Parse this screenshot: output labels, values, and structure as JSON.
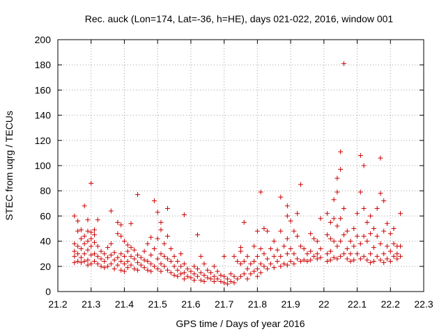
{
  "chart_data": {
    "type": "scatter",
    "title": "Rec. auck (Lon=174, Lat=-36, h=HE), days 021-022, 2016, window 001",
    "xlabel": "GPS time / Days of year 2016",
    "ylabel": "STEC from uqrg / TECUs",
    "xlim": [
      21.2,
      22.3
    ],
    "ylim": [
      0,
      200
    ],
    "xticks": [
      21.2,
      21.3,
      21.4,
      21.5,
      21.6,
      21.7,
      21.8,
      21.9,
      22.0,
      22.1,
      22.2,
      22.3
    ],
    "xtick_labels": [
      "21.2",
      "21.3",
      "21.4",
      "21.5",
      "21.6",
      "21.7",
      "21.8",
      "21.9",
      "22",
      "22.1",
      "22.2",
      "22.3"
    ],
    "yticks": [
      0,
      20,
      40,
      60,
      80,
      100,
      120,
      140,
      160,
      180,
      200
    ],
    "ytick_labels": [
      "0",
      "20",
      "40",
      "60",
      "80",
      "100",
      "120",
      "140",
      "160",
      "180",
      "200"
    ],
    "grid": true,
    "marker": "+",
    "color": "#cc0000",
    "points": [
      [
        21.25,
        60
      ],
      [
        21.25,
        38
      ],
      [
        21.25,
        32
      ],
      [
        21.25,
        28
      ],
      [
        21.25,
        23
      ],
      [
        21.26,
        56
      ],
      [
        21.26,
        48
      ],
      [
        21.26,
        36
      ],
      [
        21.26,
        30
      ],
      [
        21.26,
        24
      ],
      [
        21.27,
        49
      ],
      [
        21.27,
        42
      ],
      [
        21.27,
        34
      ],
      [
        21.27,
        27
      ],
      [
        21.27,
        23
      ],
      [
        21.28,
        68
      ],
      [
        21.28,
        44
      ],
      [
        21.28,
        38
      ],
      [
        21.28,
        30
      ],
      [
        21.28,
        24
      ],
      [
        21.29,
        57
      ],
      [
        21.29,
        48
      ],
      [
        21.29,
        40
      ],
      [
        21.29,
        33
      ],
      [
        21.29,
        25
      ],
      [
        21.29,
        21
      ],
      [
        21.3,
        86
      ],
      [
        21.3,
        47
      ],
      [
        21.3,
        42
      ],
      [
        21.3,
        36
      ],
      [
        21.3,
        29
      ],
      [
        21.3,
        22
      ],
      [
        21.31,
        49
      ],
      [
        21.31,
        45
      ],
      [
        21.31,
        39
      ],
      [
        21.31,
        30
      ],
      [
        21.31,
        24
      ],
      [
        21.32,
        57
      ],
      [
        21.32,
        36
      ],
      [
        21.32,
        28
      ],
      [
        21.32,
        22
      ],
      [
        21.33,
        32
      ],
      [
        21.33,
        26
      ],
      [
        21.33,
        20
      ],
      [
        21.34,
        30
      ],
      [
        21.34,
        24
      ],
      [
        21.34,
        19
      ],
      [
        21.35,
        35
      ],
      [
        21.35,
        27
      ],
      [
        21.35,
        20
      ],
      [
        21.36,
        64
      ],
      [
        21.36,
        38
      ],
      [
        21.36,
        29
      ],
      [
        21.36,
        22
      ],
      [
        21.37,
        31
      ],
      [
        21.37,
        25
      ],
      [
        21.37,
        18
      ],
      [
        21.38,
        55
      ],
      [
        21.38,
        46
      ],
      [
        21.38,
        27
      ],
      [
        21.38,
        21
      ],
      [
        21.39,
        53
      ],
      [
        21.39,
        44
      ],
      [
        21.39,
        30
      ],
      [
        21.39,
        24
      ],
      [
        21.39,
        17
      ],
      [
        21.4,
        40
      ],
      [
        21.4,
        28
      ],
      [
        21.4,
        22
      ],
      [
        21.4,
        16
      ],
      [
        21.41,
        37
      ],
      [
        21.41,
        32
      ],
      [
        21.41,
        24
      ],
      [
        21.41,
        19
      ],
      [
        21.42,
        54
      ],
      [
        21.42,
        35
      ],
      [
        21.42,
        28
      ],
      [
        21.42,
        21
      ],
      [
        21.43,
        33
      ],
      [
        21.43,
        26
      ],
      [
        21.43,
        18
      ],
      [
        21.44,
        77
      ],
      [
        21.44,
        29
      ],
      [
        21.44,
        23
      ],
      [
        21.44,
        17
      ],
      [
        21.45,
        27
      ],
      [
        21.45,
        21
      ],
      [
        21.46,
        32
      ],
      [
        21.46,
        25
      ],
      [
        21.46,
        19
      ],
      [
        21.47,
        38
      ],
      [
        21.47,
        24
      ],
      [
        21.47,
        17
      ],
      [
        21.48,
        43
      ],
      [
        21.48,
        29
      ],
      [
        21.48,
        22
      ],
      [
        21.48,
        16
      ],
      [
        21.49,
        72
      ],
      [
        21.49,
        34
      ],
      [
        21.49,
        20
      ],
      [
        21.5,
        63
      ],
      [
        21.5,
        42
      ],
      [
        21.5,
        26
      ],
      [
        21.5,
        18
      ],
      [
        21.51,
        55
      ],
      [
        21.51,
        49
      ],
      [
        21.51,
        30
      ],
      [
        21.51,
        22
      ],
      [
        21.51,
        16
      ],
      [
        21.52,
        38
      ],
      [
        21.52,
        28
      ],
      [
        21.52,
        20
      ],
      [
        21.53,
        66
      ],
      [
        21.53,
        44
      ],
      [
        21.53,
        26
      ],
      [
        21.53,
        17
      ],
      [
        21.54,
        34
      ],
      [
        21.54,
        24
      ],
      [
        21.54,
        15
      ],
      [
        21.55,
        28
      ],
      [
        21.55,
        20
      ],
      [
        21.55,
        13
      ],
      [
        21.56,
        24
      ],
      [
        21.56,
        17
      ],
      [
        21.56,
        12
      ],
      [
        21.57,
        30
      ],
      [
        21.57,
        20
      ],
      [
        21.57,
        14
      ],
      [
        21.58,
        61
      ],
      [
        21.58,
        22
      ],
      [
        21.58,
        15
      ],
      [
        21.58,
        10
      ],
      [
        21.59,
        18
      ],
      [
        21.59,
        12
      ],
      [
        21.6,
        16
      ],
      [
        21.6,
        11
      ],
      [
        21.61,
        20
      ],
      [
        21.61,
        14
      ],
      [
        21.61,
        9
      ],
      [
        21.62,
        45
      ],
      [
        21.62,
        18
      ],
      [
        21.62,
        12
      ],
      [
        21.63,
        28
      ],
      [
        21.63,
        15
      ],
      [
        21.63,
        9
      ],
      [
        21.64,
        22
      ],
      [
        21.64,
        13
      ],
      [
        21.64,
        8
      ],
      [
        21.65,
        17
      ],
      [
        21.65,
        11
      ],
      [
        21.66,
        15
      ],
      [
        21.66,
        10
      ],
      [
        21.67,
        20
      ],
      [
        21.67,
        12
      ],
      [
        21.67,
        8
      ],
      [
        21.68,
        16
      ],
      [
        21.68,
        10
      ],
      [
        21.69,
        13
      ],
      [
        21.69,
        8
      ],
      [
        21.7,
        28
      ],
      [
        21.7,
        12
      ],
      [
        21.7,
        7
      ],
      [
        21.71,
        10
      ],
      [
        21.71,
        6
      ],
      [
        21.72,
        14
      ],
      [
        21.72,
        8
      ],
      [
        21.73,
        28
      ],
      [
        21.73,
        12
      ],
      [
        21.73,
        7
      ],
      [
        21.74,
        24
      ],
      [
        21.74,
        10
      ],
      [
        21.75,
        35
      ],
      [
        21.75,
        32
      ],
      [
        21.75,
        22
      ],
      [
        21.75,
        12
      ],
      [
        21.76,
        55
      ],
      [
        21.76,
        24
      ],
      [
        21.76,
        14
      ],
      [
        21.77,
        28
      ],
      [
        21.77,
        18
      ],
      [
        21.77,
        10
      ],
      [
        21.78,
        22
      ],
      [
        21.78,
        14
      ],
      [
        21.79,
        36
      ],
      [
        21.79,
        24
      ],
      [
        21.79,
        16
      ],
      [
        21.8,
        48
      ],
      [
        21.8,
        28
      ],
      [
        21.8,
        18
      ],
      [
        21.8,
        12
      ],
      [
        21.81,
        79
      ],
      [
        21.81,
        34
      ],
      [
        21.81,
        22
      ],
      [
        21.81,
        15
      ],
      [
        21.82,
        50
      ],
      [
        21.82,
        30
      ],
      [
        21.82,
        20
      ],
      [
        21.83,
        48
      ],
      [
        21.83,
        26
      ],
      [
        21.83,
        18
      ],
      [
        21.84,
        34
      ],
      [
        21.84,
        22
      ],
      [
        21.85,
        40
      ],
      [
        21.85,
        28
      ],
      [
        21.85,
        19
      ],
      [
        21.86,
        33
      ],
      [
        21.86,
        24
      ],
      [
        21.87,
        75
      ],
      [
        21.87,
        48
      ],
      [
        21.87,
        28
      ],
      [
        21.87,
        20
      ],
      [
        21.88,
        36
      ],
      [
        21.88,
        22
      ],
      [
        21.89,
        68
      ],
      [
        21.89,
        60
      ],
      [
        21.89,
        42
      ],
      [
        21.89,
        30
      ],
      [
        21.89,
        21
      ],
      [
        21.9,
        56
      ],
      [
        21.9,
        34
      ],
      [
        21.9,
        24
      ],
      [
        21.91,
        48
      ],
      [
        21.91,
        30
      ],
      [
        21.91,
        22
      ],
      [
        21.92,
        62
      ],
      [
        21.92,
        44
      ],
      [
        21.92,
        26
      ],
      [
        21.93,
        85
      ],
      [
        21.93,
        36
      ],
      [
        21.93,
        24
      ],
      [
        21.94,
        34
      ],
      [
        21.94,
        25
      ],
      [
        21.95,
        30
      ],
      [
        21.95,
        24
      ],
      [
        21.96,
        46
      ],
      [
        21.96,
        32
      ],
      [
        21.96,
        25
      ],
      [
        21.97,
        42
      ],
      [
        21.97,
        28
      ],
      [
        21.98,
        40
      ],
      [
        21.98,
        30
      ],
      [
        21.98,
        26
      ],
      [
        21.99,
        58
      ],
      [
        21.99,
        34
      ],
      [
        21.99,
        27
      ],
      [
        22.01,
        62
      ],
      [
        22.01,
        45
      ],
      [
        22.01,
        30
      ],
      [
        22.01,
        24
      ],
      [
        22.02,
        55
      ],
      [
        22.02,
        42
      ],
      [
        22.02,
        32
      ],
      [
        22.02,
        25
      ],
      [
        22.03,
        73
      ],
      [
        22.03,
        58
      ],
      [
        22.03,
        40
      ],
      [
        22.03,
        27
      ],
      [
        22.04,
        90
      ],
      [
        22.04,
        79
      ],
      [
        22.04,
        52
      ],
      [
        22.04,
        36
      ],
      [
        22.04,
        26
      ],
      [
        22.05,
        111
      ],
      [
        22.05,
        97
      ],
      [
        22.05,
        58
      ],
      [
        22.05,
        40
      ],
      [
        22.05,
        28
      ],
      [
        22.06,
        181
      ],
      [
        22.06,
        66
      ],
      [
        22.06,
        45
      ],
      [
        22.06,
        30
      ],
      [
        22.07,
        48
      ],
      [
        22.07,
        34
      ],
      [
        22.07,
        26
      ],
      [
        22.08,
        40
      ],
      [
        22.08,
        30
      ],
      [
        22.08,
        24
      ],
      [
        22.09,
        50
      ],
      [
        22.09,
        36
      ],
      [
        22.09,
        25
      ],
      [
        22.1,
        62
      ],
      [
        22.1,
        44
      ],
      [
        22.1,
        30
      ],
      [
        22.11,
        108
      ],
      [
        22.11,
        79
      ],
      [
        22.11,
        38
      ],
      [
        22.11,
        26
      ],
      [
        22.12,
        100
      ],
      [
        22.12,
        66
      ],
      [
        22.12,
        44
      ],
      [
        22.12,
        28
      ],
      [
        22.13,
        55
      ],
      [
        22.13,
        40
      ],
      [
        22.13,
        25
      ],
      [
        22.14,
        60
      ],
      [
        22.14,
        46
      ],
      [
        22.14,
        30
      ],
      [
        22.14,
        23
      ],
      [
        22.15,
        50
      ],
      [
        22.15,
        35
      ],
      [
        22.15,
        24
      ],
      [
        22.16,
        66
      ],
      [
        22.16,
        44
      ],
      [
        22.16,
        28
      ],
      [
        22.17,
        106
      ],
      [
        22.17,
        78
      ],
      [
        22.17,
        38
      ],
      [
        22.17,
        25
      ],
      [
        22.18,
        72
      ],
      [
        22.18,
        48
      ],
      [
        22.18,
        30
      ],
      [
        22.18,
        23
      ],
      [
        22.19,
        54
      ],
      [
        22.19,
        36
      ],
      [
        22.19,
        26
      ],
      [
        22.2,
        46
      ],
      [
        22.2,
        32
      ],
      [
        22.2,
        24
      ],
      [
        22.21,
        50
      ],
      [
        22.21,
        38
      ],
      [
        22.21,
        28
      ],
      [
        22.22,
        36
      ],
      [
        22.22,
        30
      ],
      [
        22.22,
        26
      ],
      [
        22.23,
        62
      ],
      [
        22.23,
        36
      ],
      [
        22.23,
        28
      ]
    ]
  }
}
